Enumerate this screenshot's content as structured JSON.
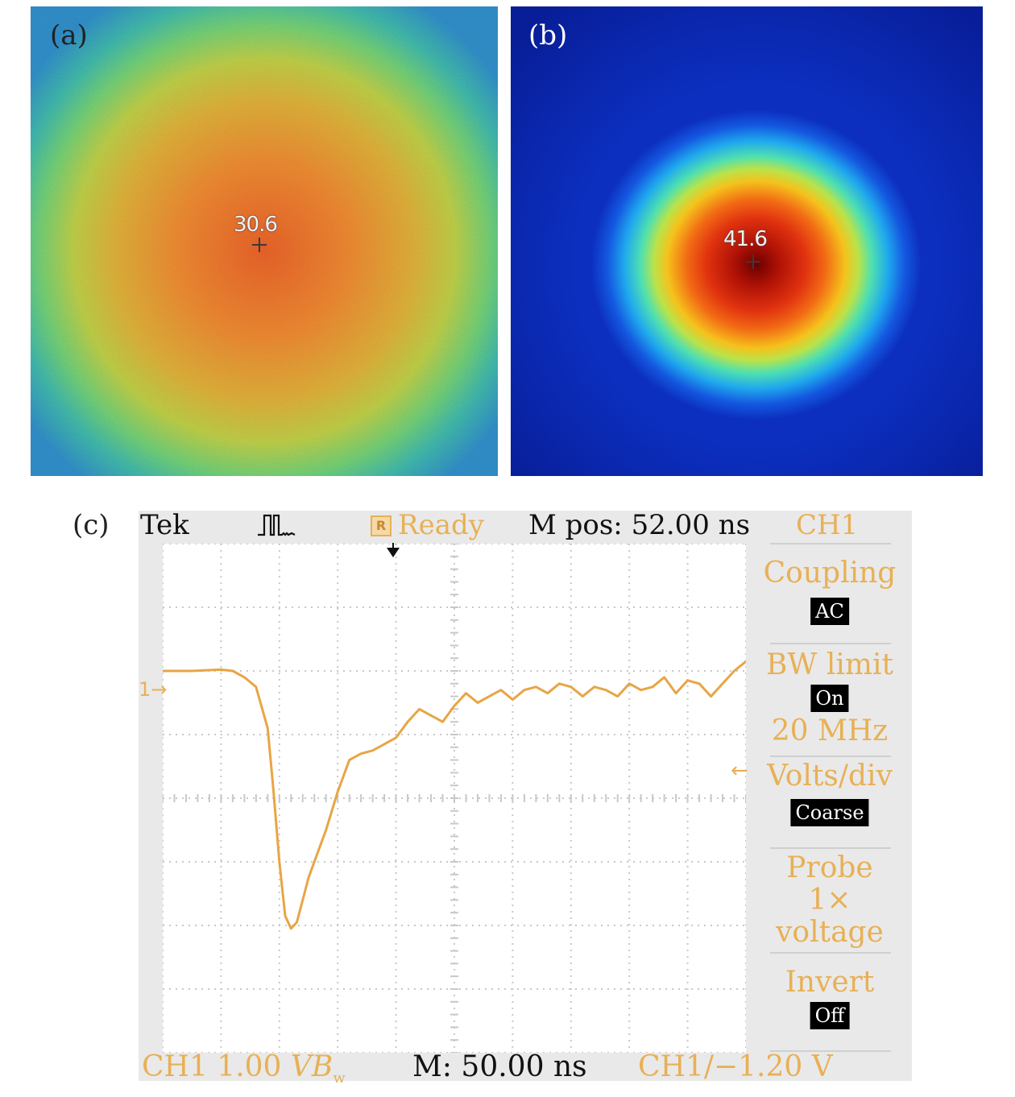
{
  "panel_a": {
    "label": "(a)",
    "marker_value": "30.6"
  },
  "panel_b": {
    "label": "(b)",
    "marker_value": "41.6"
  },
  "panel_c": {
    "label": "(c)",
    "topbar": {
      "brand": "Tek",
      "status": "Ready",
      "status_icon_letter": "R",
      "position": "M pos: 52.00 ns",
      "channel": "CH1"
    },
    "channel_marker": "1",
    "menu": {
      "coupling_label": "Coupling",
      "coupling_value": "AC",
      "bw_label": "BW limit",
      "bw_value": "On",
      "bw_freq": "20 MHz",
      "volts_label": "Volts/div",
      "volts_value": "Coarse",
      "probe_label_1": "Probe",
      "probe_label_2": "1×",
      "probe_label_3": "voltage",
      "invert_label": "Invert",
      "invert_value": "Off"
    },
    "status": {
      "ch_scale": "CH1 1.00",
      "ch_unit": "V",
      "bw_symbol": "B",
      "bw_sub": "w",
      "timebase": "M: 50.00 ns",
      "trigger": "CH1/−1.20 V"
    },
    "colors": {
      "trace": "#e8a545",
      "grid": "#c8c8c8"
    }
  },
  "chart_data": {
    "type": "line",
    "title": "",
    "xlabel": "",
    "ylabel": "",
    "grid": true,
    "divisions": {
      "x": 10,
      "y": 8
    },
    "units": {
      "x": "div",
      "y": "div"
    },
    "series": [
      {
        "x": [
          0,
          0.5,
          1,
          1.2,
          1.4,
          1.6,
          1.8,
          1.9,
          2.0,
          2.1,
          2.2,
          2.3,
          2.4,
          2.5,
          2.6,
          2.8,
          3.0,
          3.2,
          3.4,
          3.6,
          3.8,
          4.0,
          4.2,
          4.4,
          4.6,
          4.8,
          5.0,
          5.2,
          5.4,
          5.6,
          5.8,
          6.0,
          6.2,
          6.4,
          6.6,
          6.8,
          7.0,
          7.2,
          7.4,
          7.6,
          7.8,
          8.0,
          8.2,
          8.4,
          8.6,
          8.8,
          9.0,
          9.2,
          9.4,
          9.6,
          9.8,
          10.0
        ],
        "y": [
          2.0,
          2.0,
          2.02,
          2.0,
          1.9,
          1.75,
          1.1,
          0.1,
          -1.0,
          -1.85,
          -2.05,
          -1.95,
          -1.6,
          -1.25,
          -1.0,
          -0.5,
          0.1,
          0.6,
          0.7,
          0.75,
          0.85,
          0.95,
          1.2,
          1.4,
          1.3,
          1.2,
          1.45,
          1.65,
          1.5,
          1.6,
          1.7,
          1.55,
          1.7,
          1.75,
          1.65,
          1.8,
          1.75,
          1.6,
          1.75,
          1.7,
          1.6,
          1.8,
          1.7,
          1.75,
          1.9,
          1.65,
          1.85,
          1.8,
          1.6,
          1.8,
          2.0,
          2.15
        ]
      }
    ]
  }
}
